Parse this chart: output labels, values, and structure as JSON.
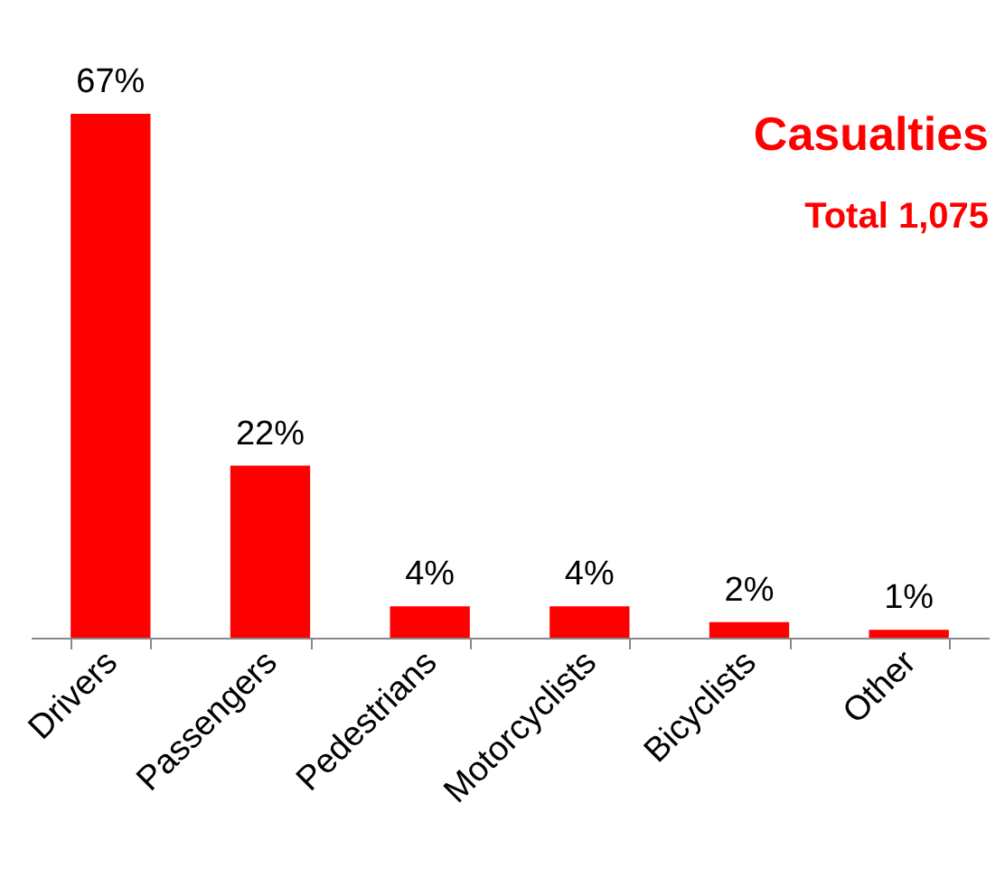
{
  "chart_data": {
    "type": "bar",
    "title": "Casualties",
    "subtitle": "Total 1,075",
    "categories": [
      "Drivers",
      "Passengers",
      "Pedestrians",
      "Motorcyclists",
      "Bicyclists",
      "Other"
    ],
    "values": [
      67,
      22,
      4,
      4,
      2,
      1
    ],
    "value_labels": [
      "67%",
      "22%",
      "4%",
      "4%",
      "2%",
      "1%"
    ],
    "color": "#ff0000"
  }
}
